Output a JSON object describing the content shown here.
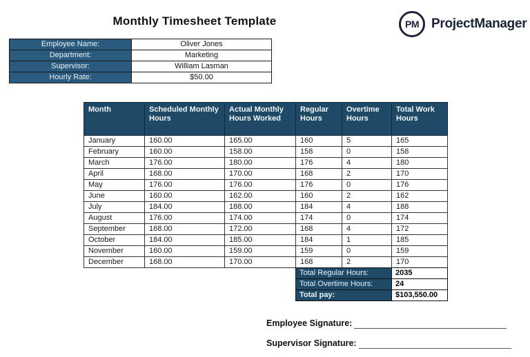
{
  "page": {
    "title": "Monthly Timesheet Template"
  },
  "logo": {
    "monogram": "PM",
    "brand": "ProjectManager"
  },
  "employee_info": {
    "rows": [
      {
        "label": "Employee Name:",
        "value": "Oliver Jones"
      },
      {
        "label": "Department:",
        "value": "Marketing"
      },
      {
        "label": "Supervisor:",
        "value": "William Lasman"
      },
      {
        "label": "Hourly Rate:",
        "value": "$50.00"
      }
    ]
  },
  "timesheet": {
    "headers": [
      "Month",
      "Scheduled Monthly Hours",
      "Actual Monthly Hours Worked",
      "Regular Hours",
      "Overtime Hours",
      "Total Work Hours"
    ],
    "rows": [
      [
        "January",
        "160.00",
        "165.00",
        "160",
        "5",
        "165"
      ],
      [
        "February",
        "160.00",
        "158.00",
        "158",
        "0",
        "158"
      ],
      [
        "March",
        "176.00",
        "180.00",
        "176",
        "4",
        "180"
      ],
      [
        "April",
        "168.00",
        "170.00",
        "168",
        "2",
        "170"
      ],
      [
        "May",
        "176.00",
        "176.00",
        "176",
        "0",
        "176"
      ],
      [
        "June",
        "160.00",
        "162.00",
        "160",
        "2",
        "162"
      ],
      [
        "July",
        "184.00",
        "188.00",
        "184",
        "4",
        "188"
      ],
      [
        "August",
        "176.00",
        "174.00",
        "174",
        "0",
        "174"
      ],
      [
        "September",
        "168.00",
        "172.00",
        "168",
        "4",
        "172"
      ],
      [
        "October",
        "184.00",
        "185.00",
        "184",
        "1",
        "185"
      ],
      [
        "November",
        "160.00",
        "159.00",
        "159",
        "0",
        "159"
      ],
      [
        "December",
        "168.00",
        "170.00",
        "168",
        "2",
        "170"
      ]
    ],
    "totals": [
      {
        "label": "Total Regular Hours:",
        "value": "2035"
      },
      {
        "label": "Total Overtime Hours:",
        "value": "24"
      },
      {
        "label": "Total pay:",
        "value": "$103,550.00"
      }
    ]
  },
  "signatures": {
    "employee_label": "Employee Signature:",
    "supervisor_label": "Supervisor Signature:"
  },
  "colors": {
    "header_blue": "#1E4A68",
    "info_blue": "#2A5A7D",
    "logo_navy": "#1C2238"
  }
}
